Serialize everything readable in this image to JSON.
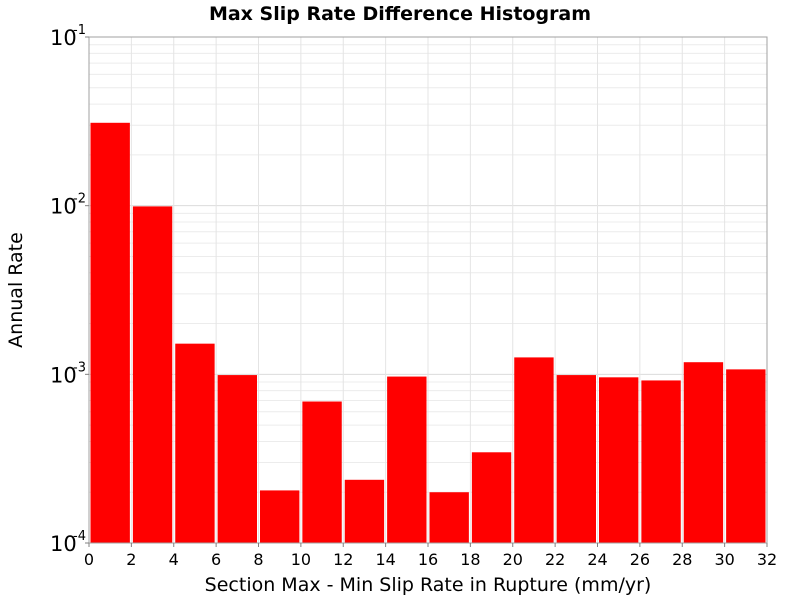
{
  "chart_data": {
    "type": "bar",
    "title": "Max Slip Rate Difference Histogram",
    "xlabel": "Section Max - Min Slip Rate in Rupture (mm/yr)",
    "ylabel": "Annual Rate",
    "xlim": [
      0,
      32
    ],
    "ylim": [
      0.0001,
      0.1
    ],
    "yscale": "log",
    "bin_width": 2,
    "x": [
      1,
      3,
      5,
      7,
      9,
      11,
      13,
      15,
      17,
      19,
      21,
      23,
      25,
      27,
      29,
      31
    ],
    "values": [
      0.031,
      0.0099,
      0.00152,
      0.00099,
      0.000205,
      0.00069,
      0.000237,
      0.00097,
      0.0002,
      0.000345,
      0.00126,
      0.00099,
      0.00096,
      0.00092,
      0.00118,
      0.00107
    ],
    "color": "#ff0000",
    "x_ticks": [
      "0",
      "2",
      "4",
      "6",
      "8",
      "10",
      "12",
      "14",
      "16",
      "18",
      "20",
      "22",
      "24",
      "26",
      "28",
      "30",
      "32"
    ],
    "y_ticks": [
      {
        "base": "10",
        "exp": "-4"
      },
      {
        "base": "10",
        "exp": "-3"
      },
      {
        "base": "10",
        "exp": "-2"
      },
      {
        "base": "10",
        "exp": "-1"
      }
    ],
    "grid": true,
    "legend": "none"
  }
}
